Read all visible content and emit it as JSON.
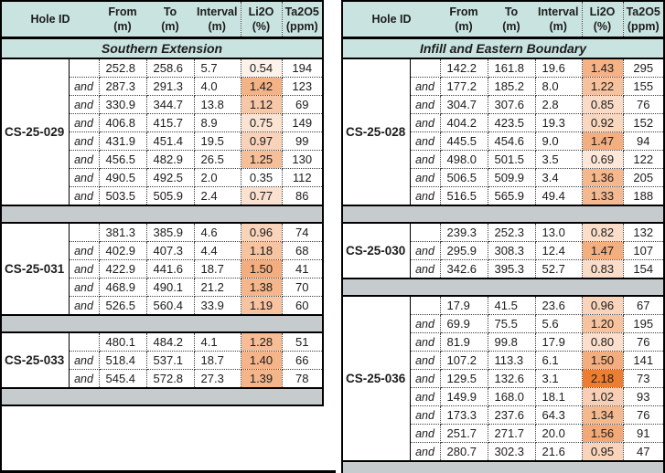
{
  "columns": [
    {
      "key": "hole",
      "label": "Hole ID",
      "unit": ""
    },
    {
      "key": "from",
      "label": "From",
      "unit": "(m)"
    },
    {
      "key": "to",
      "label": "To",
      "unit": "(m)"
    },
    {
      "key": "interval",
      "label": "Interval",
      "unit": "(m)"
    },
    {
      "key": "li2o",
      "label": "Li2O",
      "unit": "(%)"
    },
    {
      "key": "ta2o5",
      "label": "Ta2O5",
      "unit": "(ppm)"
    }
  ],
  "colors": {
    "header_bg": "#C9E4E0",
    "spacer_bg": "#C6CCCD",
    "border": "#000000",
    "text": "#1C1C1C"
  },
  "li2o_scale": {
    "min": 0.35,
    "max": 2.18,
    "low": "#FFFFFF",
    "high": "#ED7D31"
  },
  "tables": [
    {
      "id": "southern-extension",
      "section": "Southern Extension",
      "groups": [
        {
          "hole_id": "CS-25-029",
          "rows": [
            {
              "conj": "",
              "from": "252.8",
              "to": "258.6",
              "interval": "5.7",
              "li2o": "0.54",
              "ta2o5": "194"
            },
            {
              "conj": "and",
              "from": "287.3",
              "to": "291.3",
              "interval": "4.0",
              "li2o": "1.42",
              "ta2o5": "123"
            },
            {
              "conj": "and",
              "from": "330.9",
              "to": "344.7",
              "interval": "13.8",
              "li2o": "1.12",
              "ta2o5": "69"
            },
            {
              "conj": "and",
              "from": "406.8",
              "to": "415.7",
              "interval": "8.9",
              "li2o": "0.75",
              "ta2o5": "149"
            },
            {
              "conj": "and",
              "from": "431.9",
              "to": "451.4",
              "interval": "19.5",
              "li2o": "0.97",
              "ta2o5": "99"
            },
            {
              "conj": "and",
              "from": "456.5",
              "to": "482.9",
              "interval": "26.5",
              "li2o": "1.25",
              "ta2o5": "130"
            },
            {
              "conj": "and",
              "from": "490.5",
              "to": "492.5",
              "interval": "2.0",
              "li2o": "0.35",
              "ta2o5": "112"
            },
            {
              "conj": "and",
              "from": "503.5",
              "to": "505.9",
              "interval": "2.4",
              "li2o": "0.77",
              "ta2o5": "86"
            }
          ]
        },
        {
          "hole_id": "CS-25-031",
          "rows": [
            {
              "conj": "",
              "from": "381.3",
              "to": "385.9",
              "interval": "4.6",
              "li2o": "0.96",
              "ta2o5": "74"
            },
            {
              "conj": "and",
              "from": "402.9",
              "to": "407.3",
              "interval": "4.4",
              "li2o": "1.18",
              "ta2o5": "68"
            },
            {
              "conj": "and",
              "from": "422.9",
              "to": "441.6",
              "interval": "18.7",
              "li2o": "1.50",
              "ta2o5": "41"
            },
            {
              "conj": "and",
              "from": "468.9",
              "to": "490.1",
              "interval": "21.2",
              "li2o": "1.38",
              "ta2o5": "70"
            },
            {
              "conj": "and",
              "from": "526.5",
              "to": "560.4",
              "interval": "33.9",
              "li2o": "1.19",
              "ta2o5": "60"
            }
          ]
        },
        {
          "hole_id": "CS-25-033",
          "rows": [
            {
              "conj": "",
              "from": "480.1",
              "to": "484.2",
              "interval": "4.1",
              "li2o": "1.28",
              "ta2o5": "51"
            },
            {
              "conj": "and",
              "from": "518.4",
              "to": "537.1",
              "interval": "18.7",
              "li2o": "1.40",
              "ta2o5": "66"
            },
            {
              "conj": "and",
              "from": "545.4",
              "to": "572.8",
              "interval": "27.3",
              "li2o": "1.39",
              "ta2o5": "78"
            }
          ]
        }
      ]
    },
    {
      "id": "infill-and-eastern-boundary",
      "section": "Infill and Eastern Boundary",
      "groups": [
        {
          "hole_id": "CS-25-028",
          "rows": [
            {
              "conj": "",
              "from": "142.2",
              "to": "161.8",
              "interval": "19.6",
              "li2o": "1.43",
              "ta2o5": "295"
            },
            {
              "conj": "and",
              "from": "177.2",
              "to": "185.2",
              "interval": "8.0",
              "li2o": "1.22",
              "ta2o5": "155"
            },
            {
              "conj": "and",
              "from": "304.7",
              "to": "307.6",
              "interval": "2.8",
              "li2o": "0.85",
              "ta2o5": "76"
            },
            {
              "conj": "and",
              "from": "404.2",
              "to": "423.5",
              "interval": "19.3",
              "li2o": "0.92",
              "ta2o5": "152"
            },
            {
              "conj": "and",
              "from": "445.5",
              "to": "454.6",
              "interval": "9.0",
              "li2o": "1.47",
              "ta2o5": "94"
            },
            {
              "conj": "and",
              "from": "498.0",
              "to": "501.5",
              "interval": "3.5",
              "li2o": "0.69",
              "ta2o5": "122"
            },
            {
              "conj": "and",
              "from": "506.5",
              "to": "509.9",
              "interval": "3.4",
              "li2o": "1.36",
              "ta2o5": "205"
            },
            {
              "conj": "and",
              "from": "516.5",
              "to": "565.9",
              "interval": "49.4",
              "li2o": "1.33",
              "ta2o5": "188"
            }
          ]
        },
        {
          "hole_id": "CS-25-030",
          "rows": [
            {
              "conj": "",
              "from": "239.3",
              "to": "252.3",
              "interval": "13.0",
              "li2o": "0.82",
              "ta2o5": "132"
            },
            {
              "conj": "and",
              "from": "295.9",
              "to": "308.3",
              "interval": "12.4",
              "li2o": "1.47",
              "ta2o5": "107"
            },
            {
              "conj": "and",
              "from": "342.6",
              "to": "395.3",
              "interval": "52.7",
              "li2o": "0.83",
              "ta2o5": "154"
            }
          ]
        },
        {
          "hole_id": "CS-25-036",
          "rows": [
            {
              "conj": "",
              "from": "17.9",
              "to": "41.5",
              "interval": "23.6",
              "li2o": "0.96",
              "ta2o5": "67"
            },
            {
              "conj": "and",
              "from": "69.9",
              "to": "75.5",
              "interval": "5.6",
              "li2o": "1.20",
              "ta2o5": "195"
            },
            {
              "conj": "and",
              "from": "81.9",
              "to": "99.8",
              "interval": "17.9",
              "li2o": "0.80",
              "ta2o5": "76"
            },
            {
              "conj": "and",
              "from": "107.2",
              "to": "113.3",
              "interval": "6.1",
              "li2o": "1.50",
              "ta2o5": "141"
            },
            {
              "conj": "and",
              "from": "129.5",
              "to": "132.6",
              "interval": "3.1",
              "li2o": "2.18",
              "ta2o5": "73"
            },
            {
              "conj": "and",
              "from": "149.9",
              "to": "168.0",
              "interval": "18.1",
              "li2o": "1.02",
              "ta2o5": "93"
            },
            {
              "conj": "and",
              "from": "173.3",
              "to": "237.6",
              "interval": "64.3",
              "li2o": "1.34",
              "ta2o5": "76"
            },
            {
              "conj": "and",
              "from": "251.7",
              "to": "271.7",
              "interval": "20.0",
              "li2o": "1.56",
              "ta2o5": "91"
            },
            {
              "conj": "and",
              "from": "280.7",
              "to": "302.3",
              "interval": "21.6",
              "li2o": "0.95",
              "ta2o5": "47"
            }
          ]
        }
      ]
    }
  ]
}
